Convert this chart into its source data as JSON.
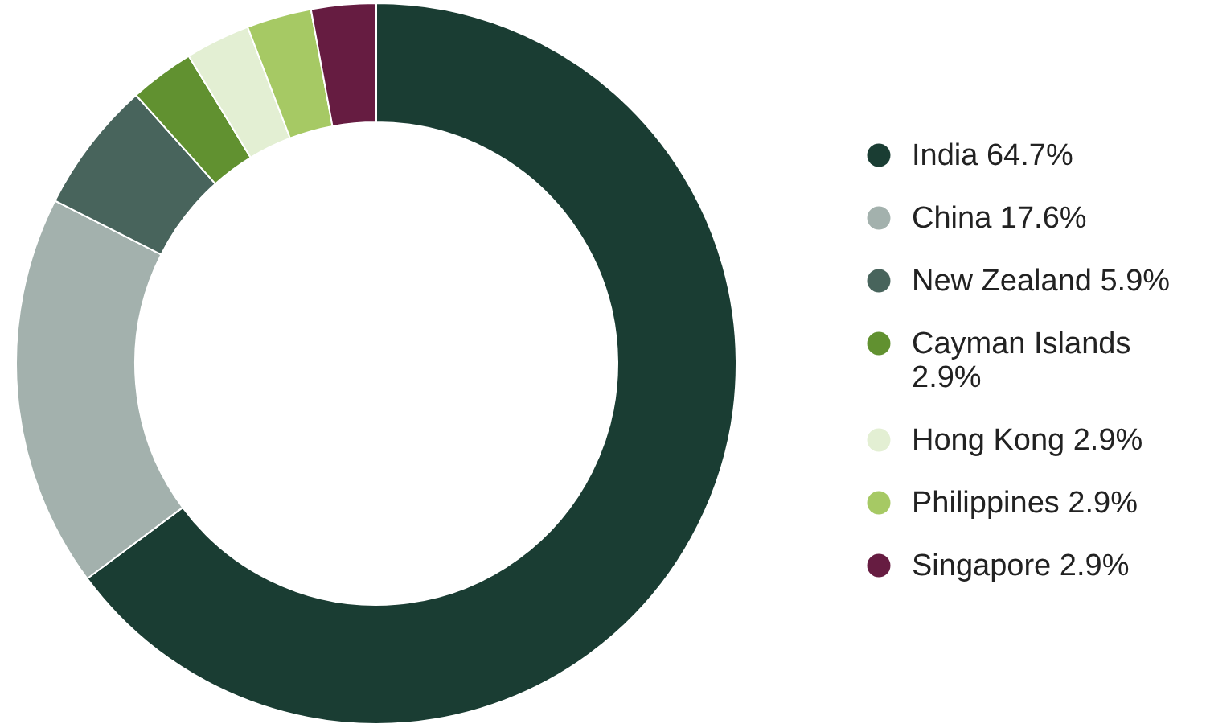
{
  "chart_data": {
    "type": "donut",
    "categories": [
      "India",
      "China",
      "New Zealand",
      "Cayman Islands",
      "Hong Kong",
      "Philippines",
      "Singapore"
    ],
    "values": [
      64.7,
      17.6,
      5.9,
      2.9,
      2.9,
      2.9,
      2.9
    ],
    "value_labels": [
      "64.7%",
      "17.6%",
      "5.9%",
      "2.9%",
      "2.9%",
      "2.9%",
      "2.9%"
    ],
    "colors": [
      "#1a3d33",
      "#a3b1ad",
      "#48645c",
      "#619130",
      "#e3efd3",
      "#a6c964",
      "#661c41"
    ],
    "legend": "right"
  }
}
